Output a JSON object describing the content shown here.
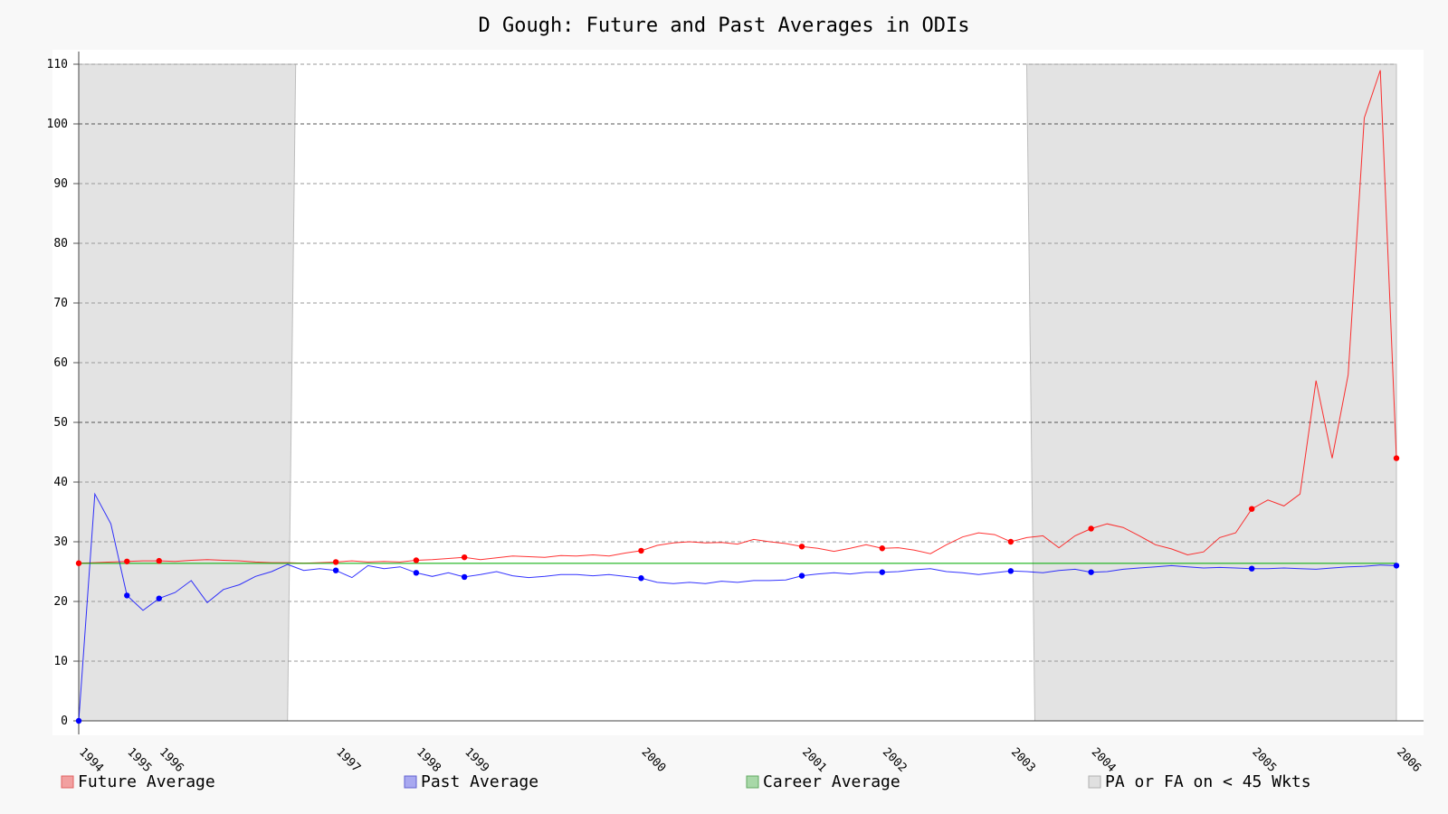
{
  "chart_data": {
    "type": "line",
    "title": "D Gough: Future and Past Averages in ODIs",
    "xlabel": "",
    "ylabel": "",
    "ylim": [
      0,
      110
    ],
    "yticks": [
      0,
      10,
      20,
      30,
      40,
      50,
      60,
      70,
      80,
      90,
      100,
      110
    ],
    "grid": true,
    "legend_placement": "bottom",
    "x_tick_labels": [
      "1994",
      "1995",
      "1996",
      "1997",
      "1998",
      "1999",
      "2000",
      "2001",
      "2002",
      "2003",
      "2004",
      "2005",
      "2006"
    ],
    "x_tick_positions": [
      0,
      3,
      5,
      16,
      21,
      24,
      35,
      45,
      50,
      58,
      63,
      73,
      82
    ],
    "x_range": [
      0,
      82
    ],
    "series": [
      {
        "name": "Future Average",
        "color": "#ff0000",
        "x": [
          0,
          1,
          2,
          3,
          4,
          5,
          6,
          7,
          8,
          9,
          10,
          11,
          12,
          13,
          14,
          15,
          16,
          17,
          18,
          19,
          20,
          21,
          22,
          23,
          24,
          25,
          26,
          27,
          28,
          29,
          30,
          31,
          32,
          33,
          34,
          35,
          36,
          37,
          38,
          39,
          40,
          41,
          42,
          43,
          44,
          45,
          46,
          47,
          48,
          49,
          50,
          51,
          52,
          53,
          54,
          55,
          56,
          57,
          58,
          59,
          60,
          61,
          62,
          63,
          64,
          65,
          66,
          67,
          68,
          69,
          70,
          71,
          72,
          73,
          74,
          75,
          76,
          77,
          78,
          79,
          80,
          81,
          82
        ],
        "values": [
          26.4,
          26.5,
          26.6,
          26.7,
          26.8,
          26.8,
          26.7,
          26.9,
          27.0,
          26.9,
          26.8,
          26.6,
          26.5,
          26.5,
          26.4,
          26.5,
          26.6,
          26.8,
          26.6,
          26.7,
          26.6,
          26.9,
          27.0,
          27.2,
          27.4,
          27.0,
          27.3,
          27.6,
          27.5,
          27.4,
          27.7,
          27.6,
          27.8,
          27.6,
          28.1,
          28.5,
          29.4,
          29.8,
          30.0,
          29.8,
          29.9,
          29.6,
          30.4,
          30.0,
          29.7,
          29.2,
          28.9,
          28.4,
          28.9,
          29.5,
          28.9,
          29.0,
          28.6,
          28.0,
          29.5,
          30.8,
          31.5,
          31.2,
          30.0,
          30.7,
          31.0,
          29.0,
          31.0,
          32.2,
          33.0,
          32.4,
          31.0,
          29.5,
          28.8,
          27.8,
          28.3,
          30.7,
          31.5,
          35.5,
          37.0,
          36.0,
          38.0,
          57.0,
          44.0,
          58.0,
          101.0,
          109.0,
          44.0
        ]
      },
      {
        "name": "Past Average",
        "color": "#0000ff",
        "x": [
          0,
          1,
          2,
          3,
          4,
          5,
          6,
          7,
          8,
          9,
          10,
          11,
          12,
          13,
          14,
          15,
          16,
          17,
          18,
          19,
          20,
          21,
          22,
          23,
          24,
          25,
          26,
          27,
          28,
          29,
          30,
          31,
          32,
          33,
          34,
          35,
          36,
          37,
          38,
          39,
          40,
          41,
          42,
          43,
          44,
          45,
          46,
          47,
          48,
          49,
          50,
          51,
          52,
          53,
          54,
          55,
          56,
          57,
          58,
          59,
          60,
          61,
          62,
          63,
          64,
          65,
          66,
          67,
          68,
          69,
          70,
          71,
          72,
          73,
          74,
          75,
          76,
          77,
          78,
          79,
          80,
          81,
          82
        ],
        "values": [
          0.0,
          38.0,
          33.0,
          21.0,
          18.5,
          20.5,
          21.5,
          23.5,
          19.8,
          22.0,
          22.8,
          24.2,
          25.0,
          26.2,
          25.2,
          25.5,
          25.2,
          24.0,
          26.0,
          25.5,
          25.8,
          24.8,
          24.2,
          24.8,
          24.1,
          24.5,
          25.0,
          24.3,
          24.0,
          24.2,
          24.5,
          24.5,
          24.3,
          24.5,
          24.2,
          23.9,
          23.2,
          23.0,
          23.2,
          23.0,
          23.4,
          23.2,
          23.5,
          23.5,
          23.6,
          24.3,
          24.6,
          24.8,
          24.6,
          24.9,
          24.9,
          25.0,
          25.3,
          25.5,
          25.0,
          24.8,
          24.5,
          24.8,
          25.1,
          25.0,
          24.8,
          25.2,
          25.4,
          24.9,
          25.0,
          25.4,
          25.6,
          25.8,
          26.0,
          25.8,
          25.6,
          25.7,
          25.6,
          25.5,
          25.5,
          25.6,
          25.5,
          25.4,
          25.6,
          25.8,
          25.9,
          26.1,
          26.0
        ],
        "marker_x": [
          0,
          3,
          5,
          16,
          21,
          24,
          35,
          45,
          50,
          58,
          63,
          73,
          82
        ]
      },
      {
        "name": "Career Average",
        "color": "#00aa00",
        "x": [
          0,
          82
        ],
        "values": [
          26.4,
          26.4
        ]
      }
    ],
    "shaded_regions_legend": "PA or FA on < 45 Wkts",
    "shaded_regions": [
      {
        "x_start": 0,
        "x_end": 13.5
      },
      {
        "x_start": 59.5,
        "x_end": 82
      }
    ]
  },
  "legend": [
    {
      "label": "Future Average",
      "swatch_fill": "#f2a0a0",
      "swatch_stroke": "#e06060"
    },
    {
      "label": "Past Average",
      "swatch_fill": "#a8a8f0",
      "swatch_stroke": "#6060d0"
    },
    {
      "label": "Career Average",
      "swatch_fill": "#a8d8a8",
      "swatch_stroke": "#60a860"
    },
    {
      "label": "PA or FA on < 45 Wkts",
      "swatch_fill": "#e0e0e0",
      "swatch_stroke": "#b0b0b0"
    }
  ]
}
